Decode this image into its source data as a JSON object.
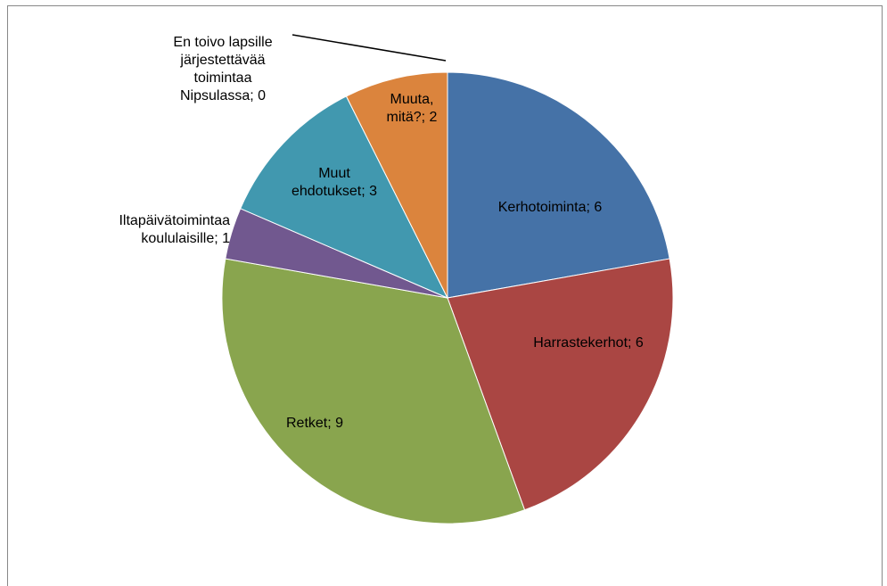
{
  "chart_data": {
    "type": "pie",
    "values": [
      6,
      6,
      9,
      1,
      3,
      2,
      0
    ],
    "value_labels": [
      "Kerhotoiminta; 6",
      "Harrastekerhot; 6",
      "Retket; 9",
      "Iltapäivätoimintaa\nkoululaisille; 1",
      "Muut\nehdotukset; 3",
      "Muuta,\nmitä?; 2",
      "En toivo lapsille\njärjestettävää\ntoimintaa\nNipsulassa; 0"
    ],
    "colors": [
      "#4572a7",
      "#aa4643",
      "#89a54e",
      "#71588f",
      "#4198af",
      "#db843d",
      "#4572a7"
    ]
  }
}
